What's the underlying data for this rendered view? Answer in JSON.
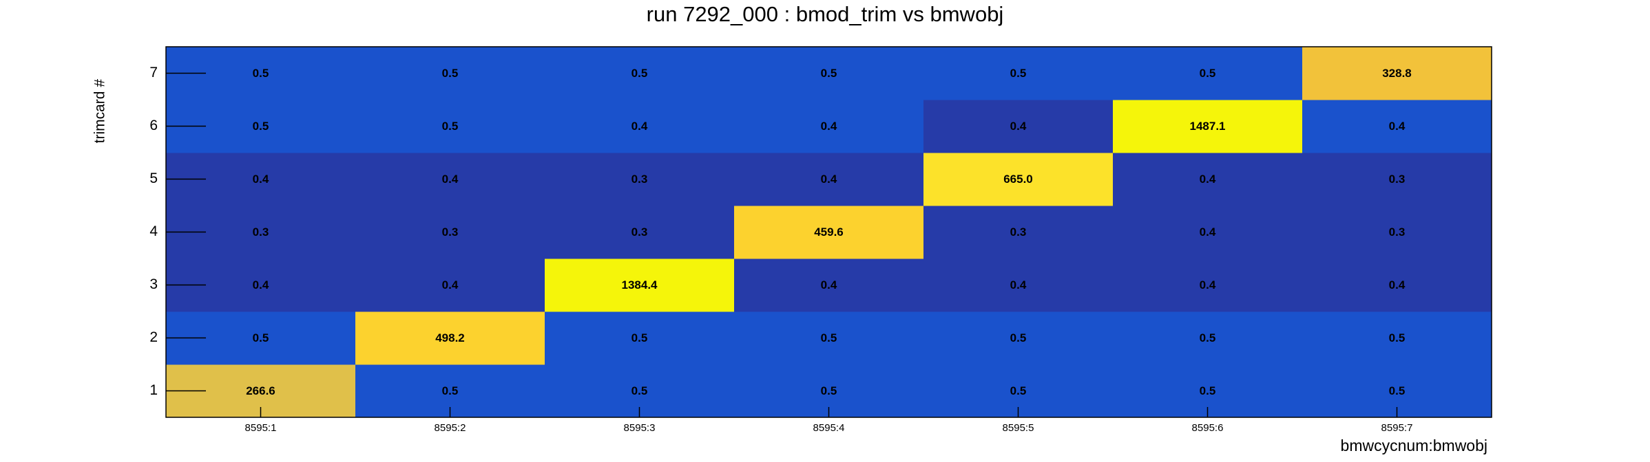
{
  "chart_data": {
    "type": "heatmap",
    "title": "run 7292_000 : bmod_trim vs bmwobj",
    "x_label": "bmwcycnum:bmwobj",
    "y_label": "trimcard #",
    "x_categories": [
      "8595:1",
      "8595:2",
      "8595:3",
      "8595:4",
      "8595:5",
      "8595:6",
      "8595:7"
    ],
    "y_categories": [
      "1",
      "2",
      "3",
      "4",
      "5",
      "6",
      "7"
    ],
    "z": [
      [
        266.6,
        0.5,
        0.5,
        0.5,
        0.5,
        0.5,
        0.5
      ],
      [
        0.5,
        498.2,
        0.5,
        0.5,
        0.5,
        0.5,
        0.5
      ],
      [
        0.4,
        0.4,
        1384.4,
        0.4,
        0.4,
        0.4,
        0.4
      ],
      [
        0.3,
        0.3,
        0.3,
        459.6,
        0.3,
        0.4,
        0.3
      ],
      [
        0.4,
        0.4,
        0.3,
        0.4,
        665.0,
        0.4,
        0.3
      ],
      [
        0.5,
        0.5,
        0.4,
        0.4,
        0.4,
        1487.1,
        0.4
      ],
      [
        0.5,
        0.5,
        0.5,
        0.5,
        0.5,
        0.5,
        328.8
      ]
    ],
    "value_labels": [
      [
        "266.6",
        "0.5",
        "0.5",
        "0.5",
        "0.5",
        "0.5",
        "0.5"
      ],
      [
        "0.5",
        "498.2",
        "0.5",
        "0.5",
        "0.5",
        "0.5",
        "0.5"
      ],
      [
        "0.4",
        "0.4",
        "1384.4",
        "0.4",
        "0.4",
        "0.4",
        "0.4"
      ],
      [
        "0.3",
        "0.3",
        "0.3",
        "459.6",
        "0.3",
        "0.4",
        "0.3"
      ],
      [
        "0.4",
        "0.4",
        "0.3",
        "0.4",
        "665.0",
        "0.4",
        "0.3"
      ],
      [
        "0.5",
        "0.5",
        "0.4",
        "0.4",
        "0.4",
        "1487.1",
        "0.4"
      ],
      [
        "0.5",
        "0.5",
        "0.5",
        "0.5",
        "0.5",
        "0.5",
        "328.8"
      ]
    ],
    "colors": [
      [
        "#e0c04a",
        "#1a52cc",
        "#1a52cc",
        "#1a52cc",
        "#1a52cc",
        "#1a52cc",
        "#1a52cc"
      ],
      [
        "#1a52cc",
        "#fcd22e",
        "#1a52cc",
        "#1a52cc",
        "#1a52cc",
        "#1a52cc",
        "#1a52cc"
      ],
      [
        "#263ba8",
        "#263ba8",
        "#f5f50a",
        "#263ba8",
        "#263ba8",
        "#263ba8",
        "#263ba8"
      ],
      [
        "#263ba8",
        "#263ba8",
        "#263ba8",
        "#fcd22e",
        "#263ba8",
        "#263ba8",
        "#263ba8"
      ],
      [
        "#263ba8",
        "#263ba8",
        "#263ba8",
        "#263ba8",
        "#fce22a",
        "#263ba8",
        "#263ba8"
      ],
      [
        "#1a52cc",
        "#1a52cc",
        "#1a52cc",
        "#1a52cc",
        "#263ba8",
        "#f5f50a",
        "#1a52cc"
      ],
      [
        "#1a52cc",
        "#1a52cc",
        "#1a52cc",
        "#1a52cc",
        "#1a52cc",
        "#1a52cc",
        "#f2c23a"
      ]
    ]
  }
}
